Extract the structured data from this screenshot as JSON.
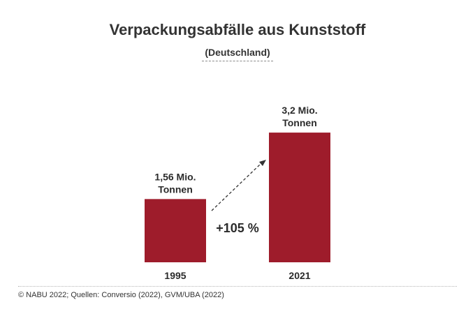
{
  "title": "Verpackungsabfälle aus Kunststoff",
  "subtitle": "(Deutschland)",
  "source": "© NABU 2022; Quellen: Conversio (2022), GVM/UBA (2022)",
  "bar_color": "#9e1c2b",
  "chart_data": {
    "type": "bar",
    "categories": [
      "1995",
      "2021"
    ],
    "values": [
      1.56,
      3.2
    ],
    "unit": "Mio. Tonnen",
    "data_labels": [
      [
        "1,56 Mio.",
        "Tonnen"
      ],
      [
        "3,2 Mio.",
        "Tonnen"
      ]
    ],
    "annotation": "+105 %",
    "title": "Verpackungsabfälle aus Kunststoff",
    "subtitle": "(Deutschland)",
    "xlabel": "",
    "ylabel": "",
    "grid": false,
    "legend": "none"
  }
}
